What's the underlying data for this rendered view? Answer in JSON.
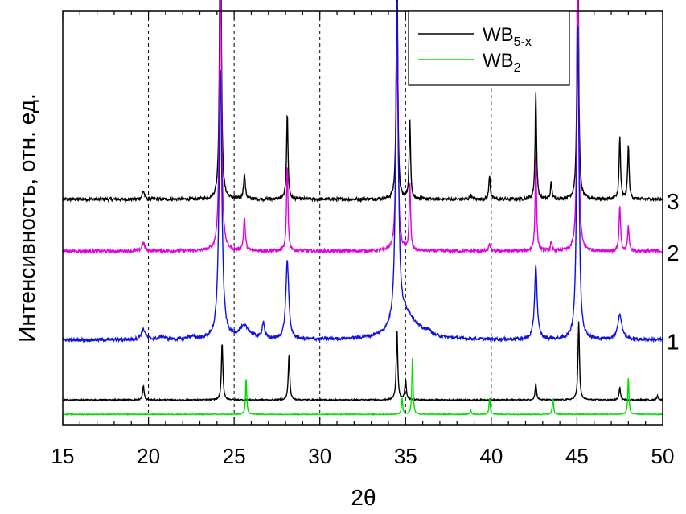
{
  "chart_data": {
    "type": "line",
    "xlabel": "2θ",
    "ylabel": "Интенсивность, отн. ед.",
    "xlim": [
      15,
      50
    ],
    "x_ticks": [
      "15",
      "20",
      "25",
      "30",
      "35",
      "40",
      "45",
      "50"
    ],
    "grid_lines_x": [
      20,
      25,
      30,
      35,
      40,
      45
    ],
    "legend": {
      "position": "top-right",
      "entries": [
        {
          "base": "WB",
          "sub": "5-x",
          "color": "#000000"
        },
        {
          "base": "WB",
          "sub": "2",
          "color": "#00dd00"
        }
      ]
    },
    "series": [
      {
        "label": "3",
        "color": "#000000",
        "baseline": 0.545,
        "noise": 0.004,
        "peaks": [
          [
            19.7,
            0.02,
            0.08
          ],
          [
            24.2,
            0.99,
            0.05
          ],
          [
            25.6,
            0.06,
            0.06
          ],
          [
            28.1,
            0.21,
            0.05
          ],
          [
            34.5,
            0.6,
            0.05
          ],
          [
            35.25,
            0.19,
            0.05
          ],
          [
            38.8,
            0.01,
            0.06
          ],
          [
            39.9,
            0.06,
            0.05
          ],
          [
            42.6,
            0.26,
            0.05
          ],
          [
            43.5,
            0.04,
            0.05
          ],
          [
            45.05,
            0.74,
            0.05
          ],
          [
            47.5,
            0.15,
            0.05
          ],
          [
            48.0,
            0.13,
            0.05
          ]
        ]
      },
      {
        "label": "2",
        "color": "#e000e0",
        "baseline": 0.42,
        "noise": 0.004,
        "peaks": [
          [
            19.7,
            0.02,
            0.1
          ],
          [
            24.2,
            0.7,
            0.07
          ],
          [
            25.6,
            0.08,
            0.06
          ],
          [
            28.1,
            0.21,
            0.05
          ],
          [
            34.5,
            0.5,
            0.07
          ],
          [
            35.25,
            0.16,
            0.05
          ],
          [
            39.9,
            0.02,
            0.05
          ],
          [
            42.6,
            0.23,
            0.05
          ],
          [
            43.5,
            0.02,
            0.05
          ],
          [
            45.05,
            0.7,
            0.06
          ],
          [
            47.5,
            0.11,
            0.05
          ],
          [
            48.0,
            0.06,
            0.05
          ]
        ]
      },
      {
        "label": "1",
        "color": "#1010e0",
        "baseline": 0.205,
        "noise": 0.004,
        "peaks": [
          [
            19.7,
            0.025,
            0.15
          ],
          [
            20.8,
            0.008,
            0.2
          ],
          [
            22.5,
            0.006,
            0.3
          ],
          [
            24.2,
            0.65,
            0.1
          ],
          [
            25.6,
            0.03,
            0.4
          ],
          [
            26.7,
            0.04,
            0.08
          ],
          [
            28.1,
            0.19,
            0.1
          ],
          [
            34.5,
            0.78,
            0.09
          ],
          [
            35.0,
            0.06,
            0.8
          ],
          [
            36.3,
            0.01,
            0.2
          ],
          [
            42.6,
            0.18,
            0.09
          ],
          [
            45.05,
            0.76,
            0.08
          ],
          [
            47.5,
            0.06,
            0.15
          ]
        ]
      },
      {
        "label": "",
        "color": "#000000",
        "baseline": 0.06,
        "noise": 0.0015,
        "peaks": [
          [
            19.7,
            0.035,
            0.05
          ],
          [
            24.3,
            0.14,
            0.05
          ],
          [
            28.2,
            0.11,
            0.05
          ],
          [
            34.5,
            0.17,
            0.05
          ],
          [
            35.0,
            0.05,
            0.05
          ],
          [
            42.6,
            0.04,
            0.05
          ],
          [
            45.1,
            0.19,
            0.05
          ],
          [
            47.5,
            0.03,
            0.05
          ],
          [
            49.7,
            0.01,
            0.05
          ]
        ]
      },
      {
        "label": "",
        "color": "#00dd00",
        "baseline": 0.025,
        "noise": 0.001,
        "peaks": [
          [
            25.7,
            0.09,
            0.04
          ],
          [
            34.8,
            0.04,
            0.04
          ],
          [
            35.4,
            0.14,
            0.04
          ],
          [
            38.8,
            0.01,
            0.04
          ],
          [
            39.9,
            0.04,
            0.04
          ],
          [
            43.6,
            0.04,
            0.04
          ],
          [
            48.0,
            0.09,
            0.04
          ]
        ]
      }
    ]
  }
}
